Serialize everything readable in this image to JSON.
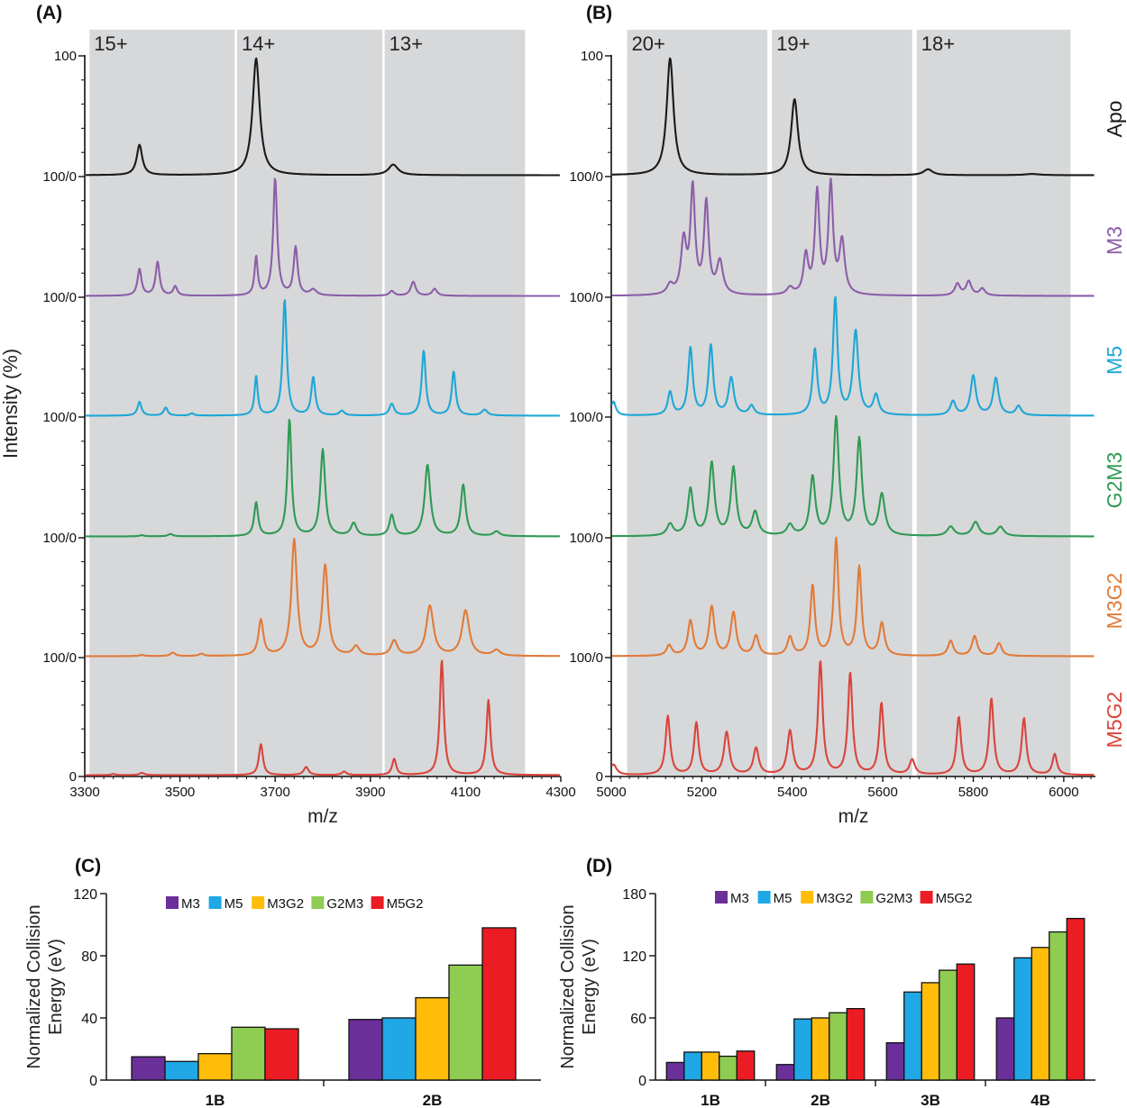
{
  "colors": {
    "Apo": "#1a1a1a",
    "M3": "#8c5ea8",
    "M5": "#1ea7d6",
    "G2M3": "#2f9a55",
    "M3G2": "#e07b39",
    "M5G2": "#d9453b",
    "bar_M3": "#6b2f9a",
    "bar_M5": "#1fa7e6",
    "bar_M3G2": "#ffbd0a",
    "bar_G2M3": "#8fcc52",
    "bar_M5G2": "#ec1c24",
    "band": "#d7d8da"
  },
  "chart_data": [
    {
      "panel": "(A)",
      "type": "line",
      "xlabel": "m/z",
      "ylabel": "Intensity (%)",
      "xlim": [
        3300,
        4300
      ],
      "xticks": [
        "3300",
        "3500",
        "3700",
        "3900",
        "4100",
        "4300"
      ],
      "yticks": [
        "100",
        "100/0",
        "100/0",
        "100/0",
        "100/0",
        "100/0",
        "0"
      ],
      "bands": [
        {
          "x0": 3310,
          "x1": 3615,
          "label": "15+"
        },
        {
          "x0": 3620,
          "x1": 3925,
          "label": "14+"
        },
        {
          "x0": 3930,
          "x1": 4225,
          "label": "13+"
        }
      ],
      "series": [
        {
          "name": "Apo",
          "peaks": [
            [
              3415,
              26,
              7
            ],
            [
              3660,
              100,
              9
            ],
            [
              3948,
              9,
              12
            ]
          ]
        },
        {
          "name": "M3",
          "peaks": [
            [
              3415,
              23,
              5
            ],
            [
              3453,
              29,
              5
            ],
            [
              3490,
              8,
              5
            ],
            [
              3660,
              33,
              4
            ],
            [
              3700,
              100,
              5
            ],
            [
              3743,
              41,
              5
            ],
            [
              3780,
              5,
              8
            ],
            [
              3945,
              4,
              6
            ],
            [
              3990,
              12,
              6
            ],
            [
              4035,
              6,
              6
            ]
          ]
        },
        {
          "name": "M5",
          "peaks": [
            [
              3415,
              12,
              5
            ],
            [
              3470,
              7,
              5
            ],
            [
              3525,
              2,
              5
            ],
            [
              3660,
              34,
              4
            ],
            [
              3720,
              100,
              5
            ],
            [
              3780,
              33,
              5
            ],
            [
              3840,
              4,
              6
            ],
            [
              3945,
              10,
              6
            ],
            [
              4012,
              56,
              5
            ],
            [
              4075,
              38,
              5
            ],
            [
              4140,
              5,
              7
            ]
          ]
        },
        {
          "name": "G2M3",
          "peaks": [
            [
              3420,
              1,
              6
            ],
            [
              3480,
              2,
              6
            ],
            [
              3660,
              29,
              5
            ],
            [
              3730,
              100,
              5
            ],
            [
              3800,
              74,
              6
            ],
            [
              3865,
              11,
              7
            ],
            [
              3945,
              18,
              6
            ],
            [
              4020,
              61,
              7
            ],
            [
              4095,
              44,
              6
            ],
            [
              4165,
              4,
              8
            ]
          ]
        },
        {
          "name": "M3G2",
          "peaks": [
            [
              3420,
              1,
              6
            ],
            [
              3485,
              3,
              6
            ],
            [
              3545,
              2,
              6
            ],
            [
              3670,
              31,
              6
            ],
            [
              3740,
              100,
              7
            ],
            [
              3805,
              78,
              7
            ],
            [
              3870,
              8,
              8
            ],
            [
              3950,
              13,
              8
            ],
            [
              4025,
              43,
              9
            ],
            [
              4100,
              39,
              9
            ],
            [
              4165,
              5,
              9
            ]
          ]
        },
        {
          "name": "M5G2",
          "peaks": [
            [
              3360,
              1,
              5
            ],
            [
              3420,
              2,
              6
            ],
            [
              3670,
              27,
              5
            ],
            [
              3765,
              7,
              6
            ],
            [
              3845,
              3,
              6
            ],
            [
              3950,
              14,
              5
            ],
            [
              4050,
              100,
              5
            ],
            [
              4148,
              65,
              5
            ]
          ]
        }
      ]
    },
    {
      "panel": "(B)",
      "type": "line",
      "xlabel": "m/z",
      "ylabel": "",
      "xlim": [
        5000,
        6070
      ],
      "xticks": [
        "5000",
        "5200",
        "5400",
        "5600",
        "5800",
        "6000"
      ],
      "yticks": [
        "100",
        "100/0",
        "100/0",
        "100/0",
        "100/0",
        "100/0",
        "0"
      ],
      "bands": [
        {
          "x0": 5035,
          "x1": 5345,
          "label": "20+"
        },
        {
          "x0": 5355,
          "x1": 5665,
          "label": "19+"
        },
        {
          "x0": 5675,
          "x1": 6015,
          "label": "18+"
        }
      ],
      "series": [
        {
          "name": "Apo",
          "peaks": [
            [
              5130,
              100,
              9
            ],
            [
              5405,
              65,
              9
            ],
            [
              5700,
              5,
              12
            ],
            [
              5930,
              1,
              20
            ]
          ]
        },
        {
          "name": "M3",
          "peaks": [
            [
              5130,
              8,
              8
            ],
            [
              5160,
              45,
              7
            ],
            [
              5180,
              90,
              6
            ],
            [
              5210,
              78,
              6
            ],
            [
              5240,
              28,
              8
            ],
            [
              5395,
              6,
              8
            ],
            [
              5430,
              33,
              6
            ],
            [
              5455,
              87,
              6
            ],
            [
              5485,
              93,
              6
            ],
            [
              5510,
              45,
              7
            ],
            [
              5765,
              10,
              7
            ],
            [
              5790,
              12,
              7
            ],
            [
              5820,
              6,
              7
            ]
          ]
        },
        {
          "name": "M5",
          "peaks": [
            [
              5005,
              12,
              6
            ],
            [
              5130,
              20,
              6
            ],
            [
              5175,
              58,
              6
            ],
            [
              5220,
              60,
              6
            ],
            [
              5265,
              32,
              7
            ],
            [
              5310,
              8,
              7
            ],
            [
              5450,
              56,
              6
            ],
            [
              5495,
              100,
              6
            ],
            [
              5540,
              72,
              7
            ],
            [
              5585,
              17,
              7
            ],
            [
              5755,
              12,
              7
            ],
            [
              5800,
              34,
              7
            ],
            [
              5850,
              32,
              7
            ],
            [
              5900,
              8,
              7
            ]
          ]
        },
        {
          "name": "G2M3",
          "peaks": [
            [
              5130,
              10,
              8
            ],
            [
              5175,
              40,
              7
            ],
            [
              5222,
              62,
              7
            ],
            [
              5270,
              58,
              7
            ],
            [
              5318,
              20,
              8
            ],
            [
              5395,
              9,
              8
            ],
            [
              5445,
              50,
              7
            ],
            [
              5497,
              100,
              7
            ],
            [
              5548,
              82,
              7
            ],
            [
              5598,
              35,
              8
            ],
            [
              5750,
              8,
              9
            ],
            [
              5805,
              12,
              9
            ],
            [
              5860,
              8,
              9
            ]
          ]
        },
        {
          "name": "M3G2",
          "peaks": [
            [
              5128,
              9,
              7
            ],
            [
              5175,
              30,
              7
            ],
            [
              5222,
              42,
              7
            ],
            [
              5270,
              37,
              7
            ],
            [
              5320,
              17,
              7
            ],
            [
              5395,
              16,
              7
            ],
            [
              5445,
              60,
              6
            ],
            [
              5497,
              100,
              6
            ],
            [
              5548,
              76,
              6
            ],
            [
              5598,
              28,
              7
            ],
            [
              5750,
              13,
              7
            ],
            [
              5803,
              17,
              7
            ],
            [
              5857,
              11,
              7
            ]
          ]
        },
        {
          "name": "M5G2",
          "peaks": [
            [
              5005,
              9,
              8
            ],
            [
              5125,
              51,
              6
            ],
            [
              5188,
              45,
              6
            ],
            [
              5255,
              37,
              7
            ],
            [
              5320,
              23,
              7
            ],
            [
              5395,
              38,
              7
            ],
            [
              5462,
              98,
              6
            ],
            [
              5528,
              88,
              6
            ],
            [
              5597,
              62,
              6
            ],
            [
              5665,
              13,
              7
            ],
            [
              5768,
              50,
              6
            ],
            [
              5840,
              66,
              6
            ],
            [
              5912,
              49,
              6
            ],
            [
              5980,
              18,
              6
            ]
          ]
        }
      ],
      "side_labels": [
        "Apo",
        "M3",
        "M5",
        "G2M3",
        "M3G2",
        "M5G2"
      ]
    },
    {
      "panel": "(C)",
      "type": "bar",
      "ylabel_line1": "Normalized Collision",
      "ylabel_line2": "Energy (eV)",
      "ylim": [
        0,
        120
      ],
      "yticks": [
        "0",
        "40",
        "80",
        "120"
      ],
      "categories": [
        "1B",
        "2B"
      ],
      "series": [
        {
          "name": "M3",
          "values": [
            15,
            39
          ]
        },
        {
          "name": "M5",
          "values": [
            12,
            40
          ]
        },
        {
          "name": "M3G2",
          "values": [
            17,
            53
          ]
        },
        {
          "name": "G2M3",
          "values": [
            34,
            74
          ]
        },
        {
          "name": "M5G2",
          "values": [
            33,
            98
          ]
        }
      ]
    },
    {
      "panel": "(D)",
      "type": "bar",
      "ylabel_line1": "Normalized Collision",
      "ylabel_line2": "Energy (eV)",
      "ylim": [
        0,
        180
      ],
      "yticks": [
        "0",
        "60",
        "120",
        "180"
      ],
      "categories": [
        "1B",
        "2B",
        "3B",
        "4B"
      ],
      "series": [
        {
          "name": "M3",
          "values": [
            17,
            15,
            36,
            60
          ]
        },
        {
          "name": "M5",
          "values": [
            27,
            59,
            85,
            118
          ]
        },
        {
          "name": "M3G2",
          "values": [
            27,
            60,
            94,
            128
          ]
        },
        {
          "name": "G2M3",
          "values": [
            23,
            65,
            106,
            143
          ]
        },
        {
          "name": "M5G2",
          "values": [
            28,
            69,
            112,
            156
          ]
        }
      ]
    }
  ]
}
